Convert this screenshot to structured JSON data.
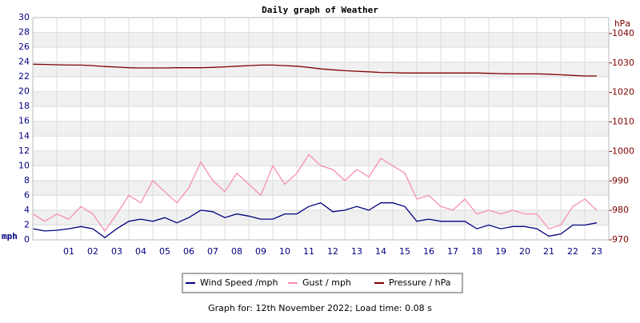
{
  "chart_data": {
    "type": "line",
    "title": "Daily graph of Weather",
    "y_label": "mph",
    "y2_label": "hPa",
    "footer": "Graph for: 12th November 2022; Load time: 0.08 s",
    "xlim": [
      0,
      24
    ],
    "xticks": [
      {
        "value": 1,
        "label": "01"
      },
      {
        "value": 2,
        "label": "02"
      },
      {
        "value": 3,
        "label": "03"
      },
      {
        "value": 4,
        "label": "04"
      },
      {
        "value": 5,
        "label": "05"
      },
      {
        "value": 6,
        "label": "06"
      },
      {
        "value": 7,
        "label": "07"
      },
      {
        "value": 8,
        "label": "08"
      },
      {
        "value": 9,
        "label": "09"
      },
      {
        "value": 10,
        "label": "10"
      },
      {
        "value": 11,
        "label": "11"
      },
      {
        "value": 12,
        "label": "12"
      },
      {
        "value": 13,
        "label": "13"
      },
      {
        "value": 14,
        "label": "14"
      },
      {
        "value": 15,
        "label": "15"
      },
      {
        "value": 16,
        "label": "16"
      },
      {
        "value": 17,
        "label": "17"
      },
      {
        "value": 18,
        "label": "18"
      },
      {
        "value": 19,
        "label": "19"
      },
      {
        "value": 20,
        "label": "20"
      },
      {
        "value": 21,
        "label": "21"
      },
      {
        "value": 22,
        "label": "22"
      },
      {
        "value": 23,
        "label": "23"
      }
    ],
    "ylim": [
      0,
      30
    ],
    "yticks": [
      0,
      2,
      4,
      6,
      8,
      10,
      12,
      14,
      16,
      18,
      20,
      22,
      24,
      26,
      28,
      30
    ],
    "y2lim": [
      970,
      1045.4
    ],
    "y2ticks": [
      970,
      980,
      990,
      1000,
      1010,
      1020,
      1030,
      1040
    ],
    "grid": true,
    "x": [
      0,
      0.5,
      1,
      1.5,
      2,
      2.5,
      3,
      3.5,
      4,
      4.5,
      5,
      5.5,
      6,
      6.5,
      7,
      7.5,
      8,
      8.5,
      9,
      9.5,
      10,
      10.5,
      11,
      11.5,
      12,
      12.5,
      13,
      13.5,
      14,
      14.5,
      15,
      15.5,
      16,
      16.5,
      17,
      17.5,
      18,
      18.5,
      19,
      19.5,
      20,
      20.5,
      21,
      21.5,
      22,
      22.5,
      23,
      23.5
    ],
    "series": [
      {
        "name": "Wind Speed /mph",
        "color": "#000080",
        "values": [
          1.5,
          1.2,
          1.3,
          1.5,
          1.8,
          1.5,
          0.3,
          1.5,
          2.5,
          2.8,
          2.5,
          3.0,
          2.3,
          3.0,
          4.0,
          3.8,
          3.0,
          3.5,
          3.2,
          2.8,
          2.8,
          3.5,
          3.5,
          4.5,
          5.0,
          3.8,
          4.0,
          4.5,
          4.0,
          5.0,
          5.0,
          4.5,
          2.5,
          2.8,
          2.5,
          2.5,
          2.5,
          1.5,
          2.0,
          1.5,
          1.8,
          1.8,
          1.5,
          0.5,
          0.8,
          2.0,
          2.0,
          2.3
        ]
      },
      {
        "name": "Gust / mph",
        "color": "#f78fb3",
        "values": [
          3.5,
          2.5,
          3.5,
          2.8,
          4.5,
          3.5,
          1.2,
          3.5,
          6.0,
          5.0,
          8.0,
          6.5,
          5.0,
          7.0,
          10.5,
          8.0,
          6.5,
          9.0,
          7.5,
          6.0,
          10.0,
          7.5,
          9.0,
          11.5,
          10.0,
          9.5,
          8.0,
          9.5,
          8.5,
          11.0,
          10.0,
          9.0,
          5.5,
          6.0,
          4.5,
          4.0,
          5.5,
          3.5,
          4.0,
          3.5,
          4.0,
          3.5,
          3.5,
          1.5,
          2.0,
          4.5,
          5.5,
          4.0
        ]
      },
      {
        "name": "Pressure / hPa",
        "color": "#800000",
        "axis": "y2",
        "values": [
          1029.6,
          1029.5,
          1029.4,
          1029.3,
          1029.3,
          1029.1,
          1028.8,
          1028.6,
          1028.4,
          1028.3,
          1028.3,
          1028.3,
          1028.4,
          1028.4,
          1028.4,
          1028.5,
          1028.7,
          1028.9,
          1029.1,
          1029.3,
          1029.3,
          1029.1,
          1028.9,
          1028.5,
          1028.0,
          1027.7,
          1027.4,
          1027.2,
          1027.0,
          1026.8,
          1026.7,
          1026.6,
          1026.6,
          1026.6,
          1026.6,
          1026.6,
          1026.6,
          1026.6,
          1026.5,
          1026.4,
          1026.3,
          1026.3,
          1026.3,
          1026.2,
          1026.0,
          1025.8,
          1025.6,
          1025.6
        ]
      }
    ]
  }
}
